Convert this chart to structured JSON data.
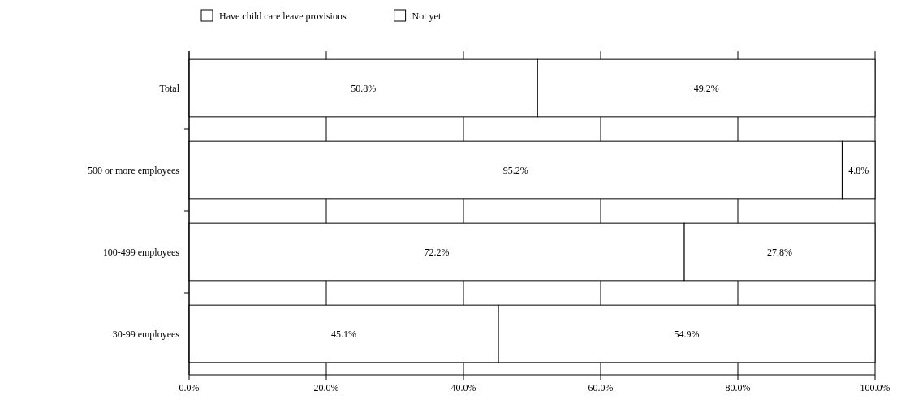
{
  "chart_data": {
    "type": "bar",
    "orientation": "horizontal",
    "stacked": true,
    "categories": [
      "Total",
      "500 or more employees",
      "100-499 employees",
      "30-99 employees"
    ],
    "series": [
      {
        "name": "Have child care leave provisions",
        "color": "#ffffff",
        "values": [
          50.8,
          95.2,
          72.2,
          45.1
        ],
        "value_labels": [
          "50.8%",
          "95.2%",
          "72.2%",
          "45.1%"
        ]
      },
      {
        "name": "Not yet",
        "color": "#ffffff",
        "values": [
          49.2,
          4.8,
          27.8,
          54.9
        ],
        "value_labels": [
          "49.2%",
          "4.8%",
          "27.8%",
          "54.9%"
        ]
      }
    ],
    "xlim": [
      0,
      100
    ],
    "xticks": [
      {
        "value": 0,
        "label": "0.0%"
      },
      {
        "value": 20,
        "label": "20.0%"
      },
      {
        "value": 40,
        "label": "40.0%"
      },
      {
        "value": 60,
        "label": "60.0%"
      },
      {
        "value": 80,
        "label": "80.0%"
      },
      {
        "value": 100,
        "label": "100.0%"
      }
    ],
    "grid": "x",
    "legend": "top"
  }
}
